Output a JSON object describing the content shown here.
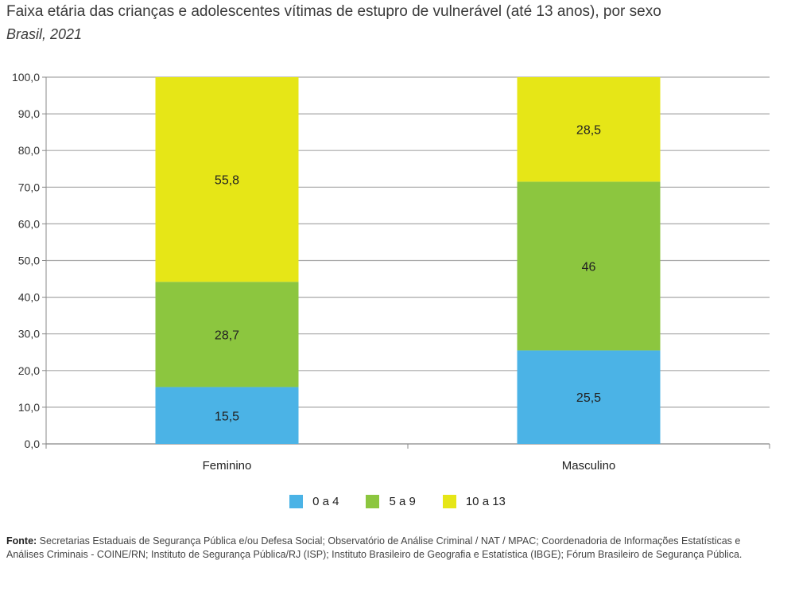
{
  "header": {
    "title": "Faixa etária das crianças e adolescentes vítimas de estupro de vulnerável (até 13 anos), por sexo",
    "subtitle": "Brasil, 2021"
  },
  "chart_data": {
    "type": "bar",
    "stacked": true,
    "categories": [
      "Feminino",
      "Masculino"
    ],
    "series": [
      {
        "name": "0 a 4",
        "values": [
          15.5,
          25.5
        ],
        "labels": [
          "15,5",
          "25,5"
        ],
        "color": "#4bb3e6"
      },
      {
        "name": "5 a 9",
        "values": [
          28.7,
          46
        ],
        "labels": [
          "28,7",
          "46"
        ],
        "color": "#8cc63f"
      },
      {
        "name": "10 a 13",
        "values": [
          55.8,
          28.5
        ],
        "labels": [
          "55,8",
          "28,5"
        ],
        "color": "#e6e617"
      }
    ],
    "ylim": [
      0,
      100
    ],
    "yticks": [
      "0,0",
      "10,0",
      "20,0",
      "30,0",
      "40,0",
      "50,0",
      "60,0",
      "70,0",
      "80,0",
      "90,0",
      "100,0"
    ],
    "grid": true,
    "legend_position": "bottom"
  },
  "footer": {
    "source_label": "Fonte:",
    "source_text": "Secretarias Estaduais de Segurança Pública e/ou Defesa Social; Observatório de Análise Criminal / NAT / MPAC; Coordenadoria de Informações Estatísticas e Análises Criminais - COINE/RN; Instituto de Segurança Pública/RJ (ISP); Instituto Brasileiro de Geografia e Estatística (IBGE); Fórum Brasileiro de Segurança Pública."
  }
}
